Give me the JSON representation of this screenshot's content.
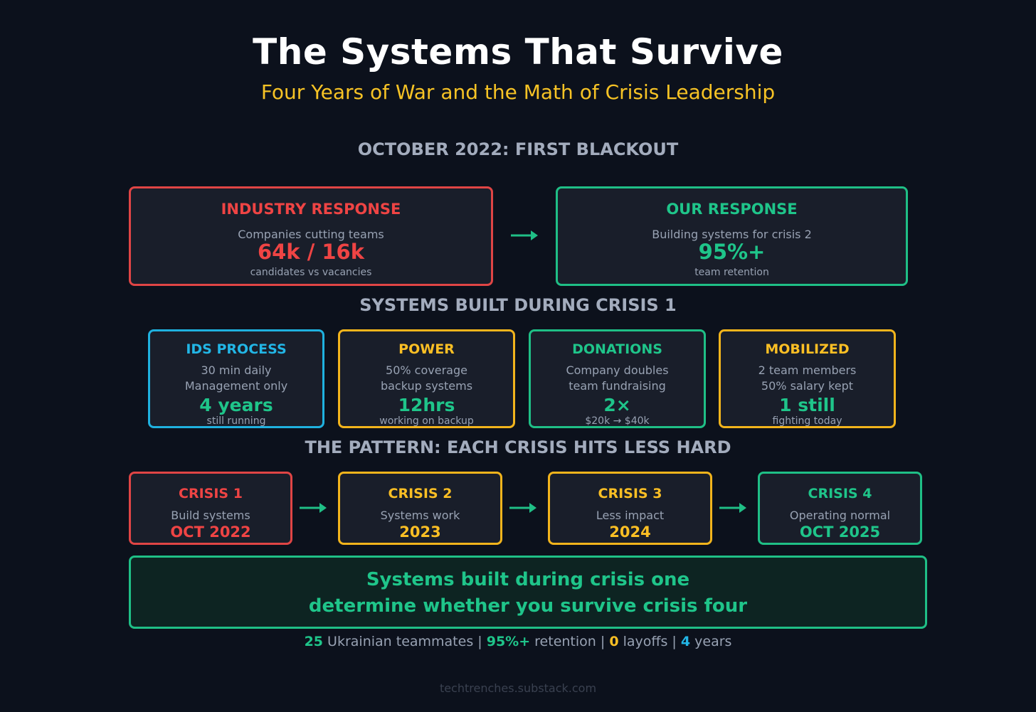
{
  "title": "The Systems That Survive",
  "subtitle": "Four Years of War and the Math of Crisis Leadership",
  "sections": {
    "first": "OCTOBER 2022: FIRST BLACKOUT",
    "systems": "SYSTEMS BUILT DURING CRISIS 1",
    "pattern": "THE PATTERN: EACH CRISIS HITS LESS HARD"
  },
  "industry": {
    "heading": "INDUSTRY RESPONSE",
    "text": "Companies cutting teams",
    "value": "64k / 16k",
    "note": "candidates vs vacancies"
  },
  "ours": {
    "heading": "OUR RESPONSE",
    "text": "Building systems for crisis 2",
    "value": "95%+",
    "note": "team retention"
  },
  "systems": [
    {
      "heading": "IDS PROCESS",
      "line1": "30 min daily",
      "line2": "Management only",
      "value": "4 years",
      "note": "still running"
    },
    {
      "heading": "POWER",
      "line1": "50% coverage",
      "line2": "backup systems",
      "value": "12hrs",
      "note": "working on backup"
    },
    {
      "heading": "DONATIONS",
      "line1": "Company doubles",
      "line2": "team fundraising",
      "value": "2×",
      "note": "$20k → $40k"
    },
    {
      "heading": "MOBILIZED",
      "line1": "2 team members",
      "line2": "50% salary kept",
      "value": "1 still",
      "note": "fighting today"
    }
  ],
  "crises": [
    {
      "heading": "CRISIS 1",
      "text": "Build systems",
      "value": "OCT 2022"
    },
    {
      "heading": "CRISIS 2",
      "text": "Systems work",
      "value": "2023"
    },
    {
      "heading": "CRISIS 3",
      "text": "Less impact",
      "value": "2024"
    },
    {
      "heading": "CRISIS 4",
      "text": "Operating normal",
      "value": "OCT 2025"
    }
  ],
  "conclusion": {
    "line1": "Systems built during crisis one",
    "line2": "determine whether you survive crisis four"
  },
  "stats": {
    "n1": "25",
    "t1": " Ukrainian teammates | ",
    "n2": "95%+",
    "t2": " retention | ",
    "n3": "0",
    "t3": " layoffs | ",
    "n4": "4",
    "t4": " years"
  },
  "footer": "techtrenches.substack.com",
  "colors": {
    "background": "#0c111c",
    "red": "#ef4444",
    "green": "#1fc58a",
    "cyan": "#22b6e6",
    "yellow": "#fbbf24"
  }
}
